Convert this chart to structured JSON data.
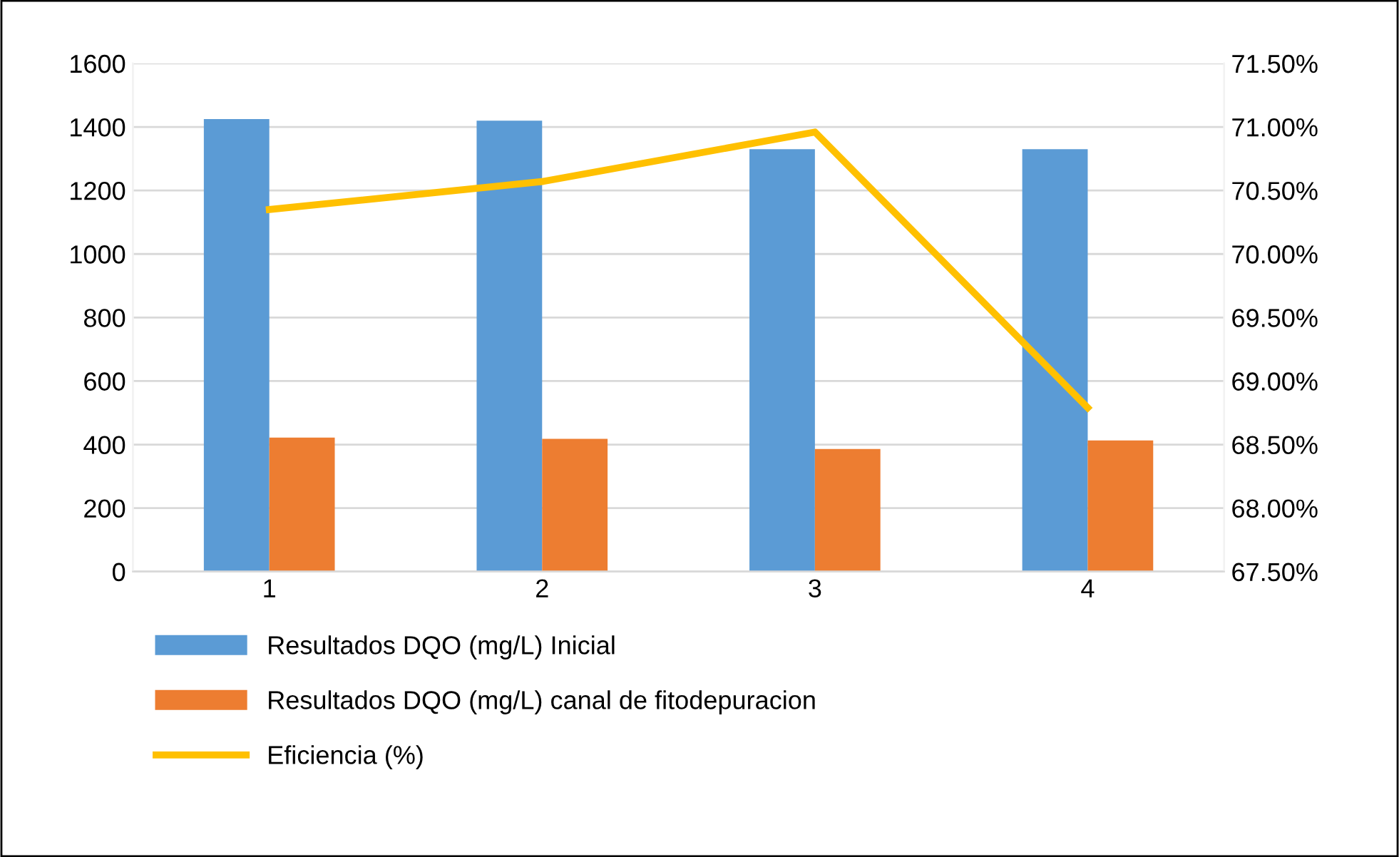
{
  "chart_data": {
    "type": "bar",
    "categories": [
      "1",
      "2",
      "3",
      "4"
    ],
    "series": [
      {
        "name": "Resultados DQO (mg/L) Inicial",
        "color": "#5b9bd5",
        "values": [
          1425,
          1420,
          1330,
          1330
        ]
      },
      {
        "name": "Resultados DQO (mg/L) canal de fitodepuracion",
        "color": "#ed7d31",
        "values": [
          422,
          418,
          386,
          413
        ]
      },
      {
        "name": "Eficiencia (%)",
        "type": "line",
        "axis": "y2",
        "color": "#ffc000",
        "marker": "none",
        "line_style": "solid",
        "values": [
          70.35,
          70.57,
          70.96,
          68.79
        ]
      }
    ],
    "ylim": [
      0,
      1600
    ],
    "yticks": [
      0,
      200,
      400,
      600,
      800,
      1000,
      1200,
      1400,
      1600
    ],
    "y2lim": [
      67.5,
      71.5
    ],
    "y2ticks": [
      {
        "value": 67.5,
        "label": "67.50%"
      },
      {
        "value": 68.0,
        "label": "68.00%"
      },
      {
        "value": 68.5,
        "label": "68.50%"
      },
      {
        "value": 69.0,
        "label": "69.00%"
      },
      {
        "value": 69.5,
        "label": "69.50%"
      },
      {
        "value": 70.0,
        "label": "70.00%"
      },
      {
        "value": 70.5,
        "label": "70.50%"
      },
      {
        "value": 71.0,
        "label": "71.00%"
      },
      {
        "value": 71.5,
        "label": "71.50%"
      }
    ],
    "grid": "y",
    "legend": "bottom"
  }
}
